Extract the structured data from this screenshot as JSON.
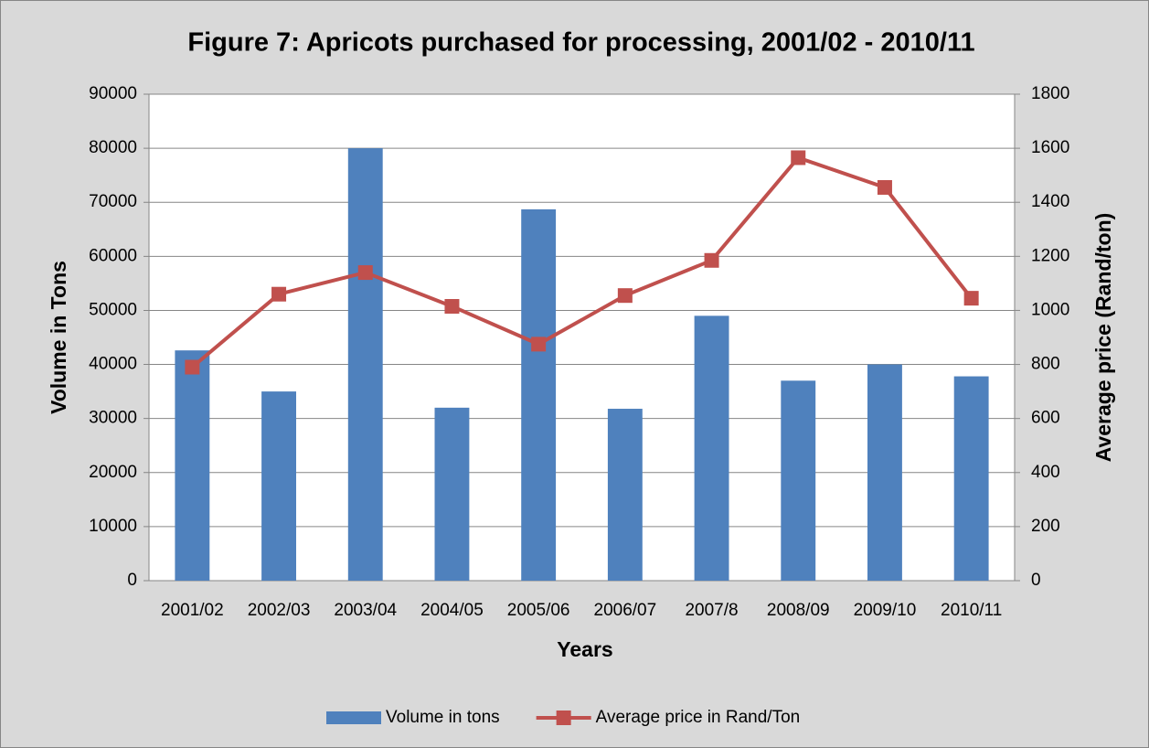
{
  "chart_data": {
    "type": "bar_line",
    "title": "Figure 7: Apricots purchased for processing, 2001/02 - 2010/11",
    "x_label": "Years",
    "y_label": "Volume in Tons",
    "y2_label": "Average price (Rand/ton)",
    "categories": [
      "2001/02",
      "2002/03",
      "2003/04",
      "2004/05",
      "2005/06",
      "2006/07",
      "2007/8",
      "2008/09",
      "2009/10",
      "2010/11"
    ],
    "series": [
      {
        "name": "Volume in tons",
        "type": "bar",
        "color": "#4f81bd",
        "values": [
          42600,
          35000,
          80000,
          32000,
          68700,
          31800,
          49000,
          37000,
          40000,
          37800
        ]
      },
      {
        "name": "Average price in Rand/Ton",
        "type": "line",
        "axis": "y2",
        "color": "#c0504d",
        "values": [
          790,
          1060,
          1140,
          1015,
          875,
          1055,
          1185,
          1565,
          1455,
          1045
        ]
      }
    ],
    "ylim": [
      0,
      90000
    ],
    "yticks": [
      0,
      10000,
      20000,
      30000,
      40000,
      50000,
      60000,
      70000,
      80000,
      90000
    ],
    "y2lim": [
      0,
      1800
    ],
    "y2ticks": [
      0,
      200,
      400,
      600,
      800,
      1000,
      1200,
      1400,
      1600,
      1800
    ],
    "grid": true,
    "legend": "bottom"
  }
}
